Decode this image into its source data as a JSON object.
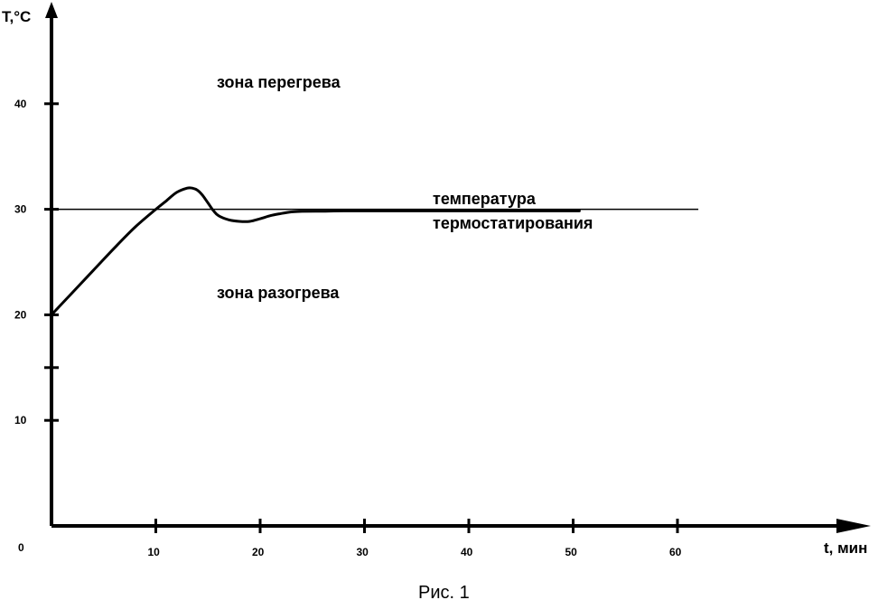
{
  "chart_data": {
    "type": "line",
    "xlabel": "t, мин",
    "ylabel": "T,°C",
    "xlim": [
      0,
      80
    ],
    "ylim": [
      0,
      50
    ],
    "origin_label": "0",
    "x_ticks": [
      10,
      20,
      30,
      40,
      50,
      60
    ],
    "x_tick_labels": [
      "10",
      "20",
      "30",
      "40",
      "50",
      "60"
    ],
    "y_ticks": [
      10,
      20,
      30,
      40
    ],
    "y_tick_labels": [
      "10",
      "20",
      "30",
      "40"
    ],
    "y_minor_ticks": [
      15
    ],
    "grid": false,
    "series": [
      {
        "x": [
          0,
          2,
          4,
          6,
          8,
          10,
          11,
          12,
          13,
          13.5,
          14,
          14.5,
          15,
          15.5,
          16,
          17,
          18,
          19,
          20,
          21,
          22,
          23,
          24,
          26,
          28,
          30,
          35,
          40,
          45,
          50.6
        ],
        "y": [
          20,
          22.1,
          24.2,
          26.3,
          28.3,
          30.0,
          30.8,
          31.6,
          32.0,
          32.0,
          31.8,
          31.3,
          30.6,
          29.9,
          29.4,
          29.0,
          28.85,
          28.85,
          29.1,
          29.4,
          29.6,
          29.75,
          29.8,
          29.82,
          29.85,
          29.85,
          29.85,
          29.85,
          29.85,
          29.85
        ]
      }
    ],
    "reference_line": {
      "y": 30,
      "x_range": [
        0,
        62
      ]
    },
    "annotations": {
      "overheat_zone": "зона перегрева",
      "setpoint_line1": "температура",
      "setpoint_line2": "термостатирования",
      "heating_zone": "зона разогрева"
    }
  },
  "caption": "Рис. 1"
}
